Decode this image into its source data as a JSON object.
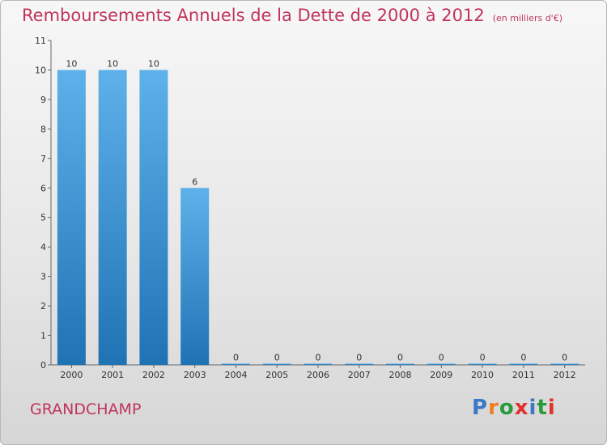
{
  "title": "Remboursements Annuels de la Dette de 2000 à 2012",
  "unit_note": "(en milliers d'€)",
  "commune": "GRANDCHAMP",
  "logo": {
    "letters": [
      "P",
      "r",
      "o",
      "x",
      "i",
      "t",
      "i"
    ],
    "colors": [
      "#3a78c8",
      "#f07e1e",
      "#2a9b3c",
      "#e0312f",
      "#3a78c8",
      "#2a9b3c",
      "#e0312f"
    ]
  },
  "colors": {
    "bar_top": "#5eb1ea",
    "bar_bottom": "#1f73b4",
    "title": "#c0345a"
  },
  "chart_data": {
    "type": "bar",
    "categories": [
      "2000",
      "2001",
      "2002",
      "2003",
      "2004",
      "2005",
      "2006",
      "2007",
      "2008",
      "2009",
      "2010",
      "2011",
      "2012"
    ],
    "values": [
      10,
      10,
      10,
      6,
      0,
      0,
      0,
      0,
      0,
      0,
      0,
      0,
      0
    ],
    "ylim": [
      0,
      11
    ],
    "yticks": [
      0,
      1,
      2,
      3,
      4,
      5,
      6,
      7,
      8,
      9,
      10,
      11
    ],
    "grid": false
  }
}
